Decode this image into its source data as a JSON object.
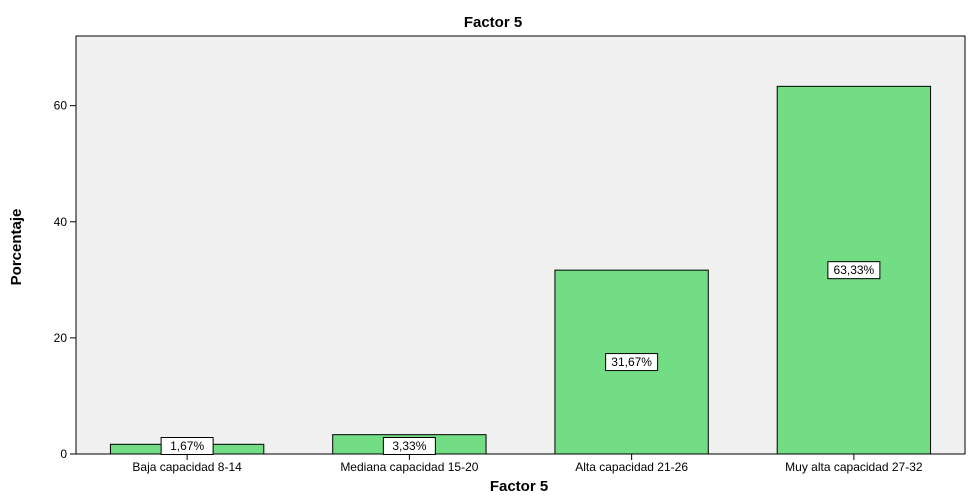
{
  "chart_data": {
    "type": "bar",
    "title": "Factor 5",
    "xlabel": "Factor 5",
    "ylabel": "Porcentaje",
    "categories": [
      "Baja capacidad 8-14",
      "Mediana capacidad 15-20",
      "Alta capacidad 21-26",
      "Muy alta capacidad 27-32"
    ],
    "values": [
      1.67,
      3.33,
      31.67,
      63.33
    ],
    "data_labels": [
      "1,67%",
      "3,33%",
      "31,67%",
      "63,33%"
    ],
    "yticks": [
      0,
      20,
      40,
      60
    ],
    "ylim": [
      0,
      72
    ],
    "grid": false,
    "legend": "none",
    "colors": {
      "bar_fill": "#72dd84",
      "bar_stroke": "#000000",
      "plot_background": "#f0f0f0",
      "page_background": "#ffffff"
    }
  }
}
